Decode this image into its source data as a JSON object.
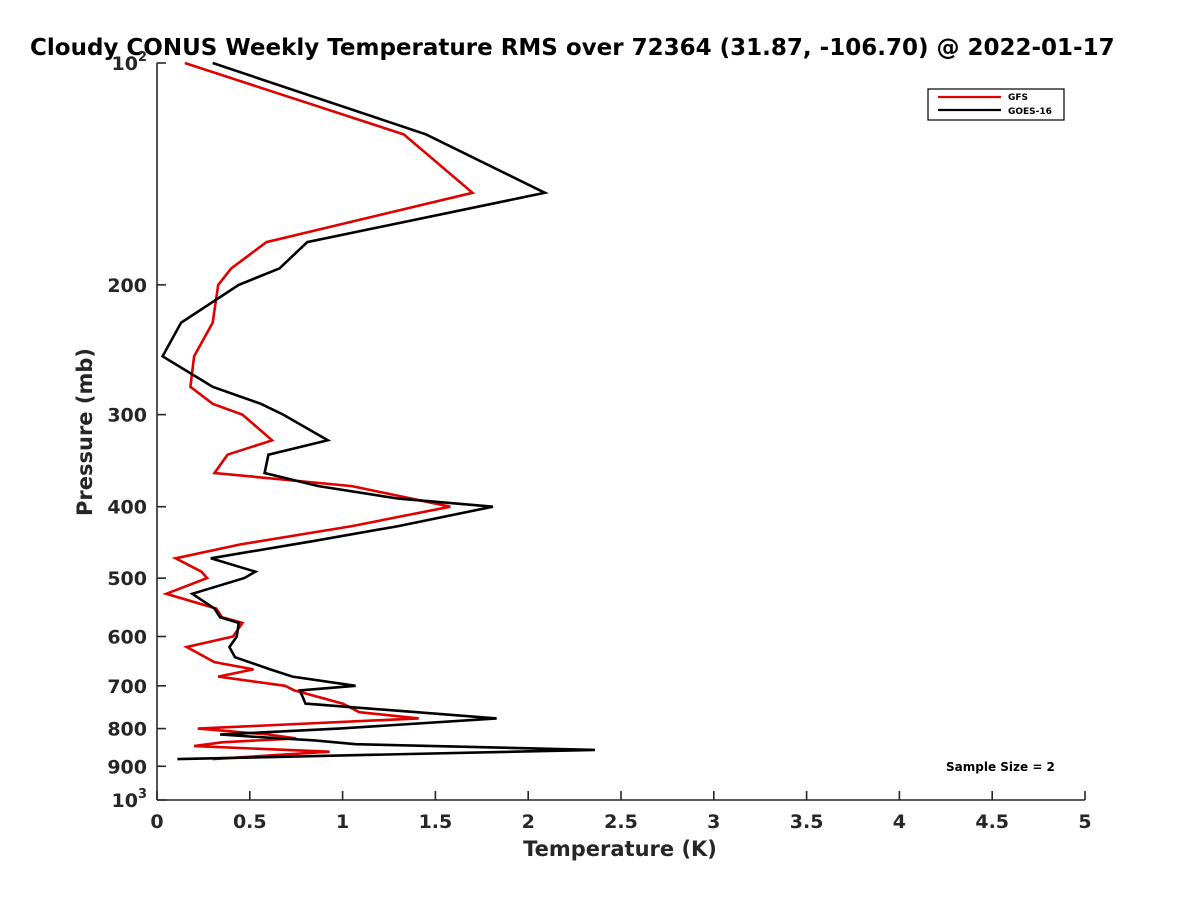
{
  "chart_data": {
    "type": "line",
    "title": "Cloudy CONUS Weekly Temperature RMS over 72364 (31.87, -106.70) @ 2022-01-17",
    "xlabel": "Temperature (K)",
    "ylabel": "Pressure (mb)",
    "xlim": [
      0,
      5
    ],
    "ylim": [
      100,
      1000
    ],
    "yscale": "log",
    "y_direction": "reversed",
    "x_ticks": [
      "0",
      "0.5",
      "1",
      "1.5",
      "2",
      "2.5",
      "3",
      "3.5",
      "4",
      "4.5",
      "5"
    ],
    "y_ticks": [
      {
        "value": 100,
        "base": "10",
        "exp": "2"
      },
      {
        "value": 200,
        "label": "200"
      },
      {
        "value": 300,
        "label": "300"
      },
      {
        "value": 400,
        "label": "400"
      },
      {
        "value": 500,
        "label": "500"
      },
      {
        "value": 600,
        "label": "600"
      },
      {
        "value": 700,
        "label": "700"
      },
      {
        "value": 800,
        "label": "800"
      },
      {
        "value": 900,
        "label": "900"
      },
      {
        "value": 1000,
        "base": "10",
        "exp": "3"
      }
    ],
    "legend_position": "top-right",
    "annotation": "Sample Size = 2",
    "series": [
      {
        "name": "GFS",
        "color": "#e00000",
        "points": [
          [
            0.15,
            100
          ],
          [
            1.33,
            125
          ],
          [
            1.7,
            150
          ],
          [
            0.59,
            175
          ],
          [
            0.4,
            190
          ],
          [
            0.33,
            200
          ],
          [
            0.3,
            225
          ],
          [
            0.2,
            250
          ],
          [
            0.18,
            275
          ],
          [
            0.3,
            290
          ],
          [
            0.46,
            300
          ],
          [
            0.62,
            325
          ],
          [
            0.38,
            340
          ],
          [
            0.31,
            360
          ],
          [
            1.05,
            375
          ],
          [
            1.58,
            400
          ],
          [
            1.05,
            425
          ],
          [
            0.45,
            450
          ],
          [
            0.1,
            470
          ],
          [
            0.24,
            490
          ],
          [
            0.27,
            500
          ],
          [
            0.05,
            525
          ],
          [
            0.32,
            550
          ],
          [
            0.35,
            565
          ],
          [
            0.46,
            575
          ],
          [
            0.41,
            600
          ],
          [
            0.16,
            620
          ],
          [
            0.31,
            650
          ],
          [
            0.52,
            665
          ],
          [
            0.33,
            680
          ],
          [
            0.69,
            700
          ],
          [
            0.74,
            710
          ],
          [
            1.0,
            740
          ],
          [
            1.09,
            760
          ],
          [
            1.41,
            775
          ],
          [
            0.22,
            800
          ],
          [
            0.6,
            815
          ],
          [
            0.75,
            825
          ],
          [
            0.35,
            835
          ],
          [
            0.2,
            845
          ],
          [
            0.93,
            860
          ],
          [
            0.3,
            880
          ]
        ]
      },
      {
        "name": "GOES-16",
        "color": "#000000",
        "points": [
          [
            0.3,
            100
          ],
          [
            1.45,
            125
          ],
          [
            2.09,
            150
          ],
          [
            0.81,
            175
          ],
          [
            0.66,
            190
          ],
          [
            0.44,
            200
          ],
          [
            0.13,
            225
          ],
          [
            0.03,
            250
          ],
          [
            0.3,
            275
          ],
          [
            0.56,
            290
          ],
          [
            0.68,
            300
          ],
          [
            0.92,
            325
          ],
          [
            0.6,
            340
          ],
          [
            0.58,
            360
          ],
          [
            0.87,
            375
          ],
          [
            1.3,
            390
          ],
          [
            1.81,
            400
          ],
          [
            1.3,
            425
          ],
          [
            0.85,
            445
          ],
          [
            0.29,
            470
          ],
          [
            0.53,
            490
          ],
          [
            0.47,
            500
          ],
          [
            0.19,
            525
          ],
          [
            0.31,
            550
          ],
          [
            0.34,
            565
          ],
          [
            0.44,
            575
          ],
          [
            0.43,
            600
          ],
          [
            0.39,
            620
          ],
          [
            0.42,
            640
          ],
          [
            0.61,
            665
          ],
          [
            0.73,
            680
          ],
          [
            1.07,
            700
          ],
          [
            0.77,
            710
          ],
          [
            0.8,
            740
          ],
          [
            1.4,
            760
          ],
          [
            1.83,
            775
          ],
          [
            0.98,
            800
          ],
          [
            0.34,
            815
          ],
          [
            0.5,
            820
          ],
          [
            0.85,
            830
          ],
          [
            1.07,
            840
          ],
          [
            2.36,
            855
          ],
          [
            0.11,
            880
          ]
        ]
      }
    ]
  }
}
